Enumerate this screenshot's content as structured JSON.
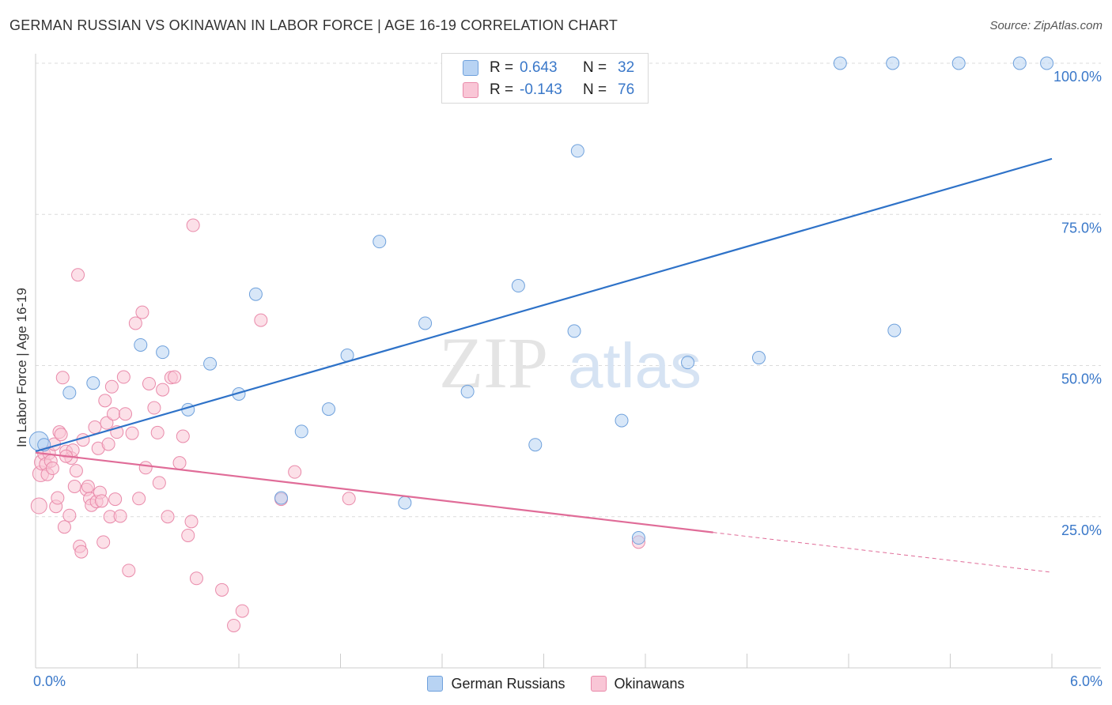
{
  "title": "GERMAN RUSSIAN VS OKINAWAN IN LABOR FORCE | AGE 16-19 CORRELATION CHART",
  "source": "Source: ZipAtlas.com",
  "watermark": {
    "zip": "ZIP",
    "atlas": "atlas"
  },
  "stats": {
    "series1": {
      "r_label": "R =",
      "r_value": "0.643",
      "n_label": "N =",
      "n_value": "32"
    },
    "series2": {
      "r_label": "R =",
      "r_value": "-0.143",
      "n_label": "N =",
      "n_value": "76"
    }
  },
  "colors": {
    "blue_fill": "#b8d3f3",
    "blue_stroke": "#6fa1dc",
    "blue_line": "#2e72c8",
    "pink_fill": "#f9c6d6",
    "pink_stroke": "#e98aaa",
    "pink_line": "#e06c98",
    "axis_text": "#3a78c9",
    "grid": "#dcdcdc"
  },
  "chart_data": {
    "type": "scatter",
    "title": "GERMAN RUSSIAN VS OKINAWAN IN LABOR FORCE | AGE 16-19 CORRELATION CHART",
    "xlabel": "",
    "ylabel": "In Labor Force | Age 16-19",
    "xlim": [
      0,
      6
    ],
    "ylim": [
      0,
      100
    ],
    "x_tick_labels": [
      "0.0%",
      "6.0%"
    ],
    "y_ticks": [
      25,
      50,
      75,
      100
    ],
    "y_tick_labels": [
      "25.0%",
      "50.0%",
      "75.0%",
      "100.0%"
    ],
    "grid": true,
    "series": [
      {
        "name": "German Russians",
        "r": 0.643,
        "n": 32,
        "trend": {
          "x0": 0.0,
          "y0": 35.8,
          "x1": 6.0,
          "y1": 84.2
        },
        "points": [
          [
            0.02,
            37.5
          ],
          [
            0.05,
            36.9
          ],
          [
            0.2,
            45.5
          ],
          [
            0.34,
            47.1
          ],
          [
            0.62,
            53.4
          ],
          [
            0.75,
            52.2
          ],
          [
            0.9,
            42.7
          ],
          [
            1.03,
            50.3
          ],
          [
            1.2,
            45.3
          ],
          [
            1.3,
            61.8
          ],
          [
            1.45,
            28.1
          ],
          [
            1.57,
            39.1
          ],
          [
            1.73,
            42.8
          ],
          [
            1.84,
            51.7
          ],
          [
            2.03,
            70.5
          ],
          [
            2.18,
            27.3
          ],
          [
            2.3,
            57.0
          ],
          [
            2.55,
            45.7
          ],
          [
            2.85,
            63.2
          ],
          [
            2.95,
            36.9
          ],
          [
            3.18,
            55.7
          ],
          [
            3.2,
            85.5
          ],
          [
            3.46,
            40.9
          ],
          [
            3.56,
            21.5
          ],
          [
            3.85,
            50.5
          ],
          [
            4.27,
            51.3
          ],
          [
            4.75,
            100.0
          ],
          [
            5.06,
            100.0
          ],
          [
            5.07,
            55.8
          ],
          [
            5.45,
            100.0
          ],
          [
            5.81,
            100.0
          ],
          [
            5.97,
            100.0
          ]
        ]
      },
      {
        "name": "Okinawans",
        "r": -0.143,
        "n": 76,
        "trend": {
          "x0": 0.0,
          "y0": 35.6,
          "x1": 4.0,
          "y1": 22.4
        },
        "trend_dashed": {
          "x0": 4.0,
          "y0": 22.4,
          "x1": 6.0,
          "y1": 15.8
        },
        "points": [
          [
            0.02,
            26.8
          ],
          [
            0.03,
            32.1
          ],
          [
            0.04,
            34.0
          ],
          [
            0.05,
            35.4
          ],
          [
            0.06,
            33.7
          ],
          [
            0.07,
            32.0
          ],
          [
            0.08,
            35.5
          ],
          [
            0.09,
            34.2
          ],
          [
            0.1,
            33.0
          ],
          [
            0.11,
            37.0
          ],
          [
            0.12,
            26.7
          ],
          [
            0.13,
            28.1
          ],
          [
            0.14,
            39.0
          ],
          [
            0.15,
            38.6
          ],
          [
            0.16,
            48.0
          ],
          [
            0.17,
            23.3
          ],
          [
            0.18,
            35.8
          ],
          [
            0.2,
            25.2
          ],
          [
            0.21,
            34.7
          ],
          [
            0.22,
            36.0
          ],
          [
            0.23,
            30.0
          ],
          [
            0.24,
            32.6
          ],
          [
            0.25,
            65.0
          ],
          [
            0.26,
            20.1
          ],
          [
            0.27,
            19.2
          ],
          [
            0.28,
            37.7
          ],
          [
            0.3,
            29.5
          ],
          [
            0.31,
            30.0
          ],
          [
            0.32,
            28.0
          ],
          [
            0.33,
            26.9
          ],
          [
            0.35,
            39.8
          ],
          [
            0.36,
            27.5
          ],
          [
            0.37,
            36.3
          ],
          [
            0.38,
            29.0
          ],
          [
            0.39,
            27.6
          ],
          [
            0.4,
            20.8
          ],
          [
            0.41,
            44.2
          ],
          [
            0.42,
            40.5
          ],
          [
            0.43,
            37.0
          ],
          [
            0.44,
            25.0
          ],
          [
            0.45,
            46.5
          ],
          [
            0.46,
            42.0
          ],
          [
            0.47,
            27.9
          ],
          [
            0.48,
            39.0
          ],
          [
            0.5,
            25.1
          ],
          [
            0.52,
            48.1
          ],
          [
            0.53,
            42.0
          ],
          [
            0.55,
            16.1
          ],
          [
            0.57,
            38.8
          ],
          [
            0.59,
            57.0
          ],
          [
            0.61,
            28.0
          ],
          [
            0.63,
            58.8
          ],
          [
            0.65,
            33.1
          ],
          [
            0.67,
            47.0
          ],
          [
            0.7,
            43.0
          ],
          [
            0.72,
            38.9
          ],
          [
            0.73,
            30.6
          ],
          [
            0.75,
            46.0
          ],
          [
            0.78,
            25.0
          ],
          [
            0.8,
            48.0
          ],
          [
            0.82,
            48.1
          ],
          [
            0.85,
            33.9
          ],
          [
            0.87,
            38.3
          ],
          [
            0.9,
            21.9
          ],
          [
            0.92,
            24.2
          ],
          [
            0.93,
            73.2
          ],
          [
            0.95,
            14.8
          ],
          [
            1.1,
            12.9
          ],
          [
            1.17,
            7.0
          ],
          [
            1.22,
            9.4
          ],
          [
            1.33,
            57.5
          ],
          [
            1.45,
            27.9
          ],
          [
            1.53,
            32.4
          ],
          [
            1.85,
            28.0
          ],
          [
            3.56,
            20.8
          ],
          [
            0.18,
            35.0
          ]
        ]
      }
    ]
  },
  "legend": {
    "items": [
      {
        "name": "German Russians"
      },
      {
        "name": "Okinawans"
      }
    ]
  }
}
